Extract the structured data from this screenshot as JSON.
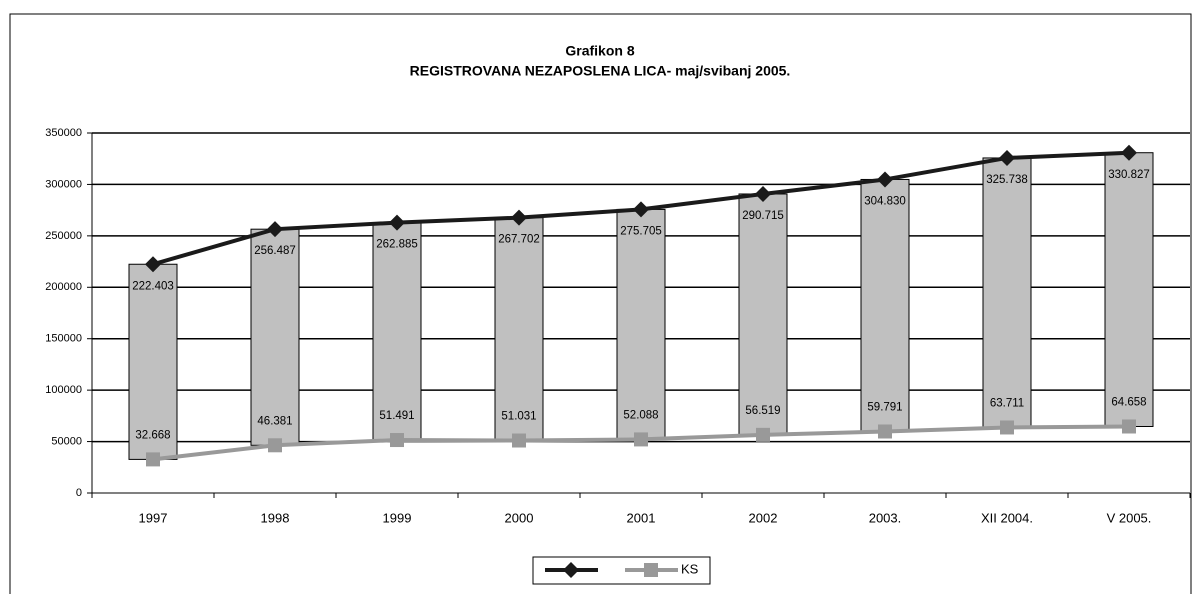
{
  "chart_data": {
    "type": "line",
    "title": "Grafikon 8",
    "subtitle": "REGISTROVANA NEZAPOSLENA LICA- maj/svibanj 2005.",
    "categories": [
      "1997",
      "1998",
      "1999",
      "2000",
      "2001",
      "2002",
      "2003.",
      "XII  2004.",
      "V 2005."
    ],
    "series": [
      {
        "color": "#1a1a1a",
        "marker": "diamond",
        "values": [
          222403,
          256487,
          262885,
          267702,
          275705,
          290715,
          304830,
          325738,
          330827
        ],
        "value_labels": [
          "222.403",
          "256.487",
          "262.885",
          "267.702",
          "275.705",
          "290.715",
          "304.830",
          "325.738",
          "330.827"
        ]
      },
      {
        "name": "KS",
        "color": "#999999",
        "marker": "square",
        "values": [
          32668,
          46381,
          51491,
          51031,
          52088,
          56519,
          59791,
          63711,
          64658
        ],
        "value_labels": [
          "32.668",
          "46.381",
          "51.491",
          "51.031",
          "52.088",
          "56.519",
          "59.791",
          "63.711",
          "64.658"
        ]
      }
    ],
    "up_down_bars": true,
    "bar_color": "#c0c0c0",
    "ylim": [
      0,
      350000
    ],
    "yticks": [
      0,
      50000,
      100000,
      150000,
      200000,
      250000,
      300000,
      350000
    ],
    "grid": true
  }
}
